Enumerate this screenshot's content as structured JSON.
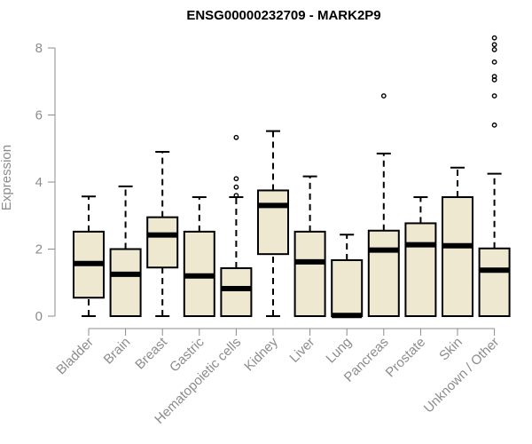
{
  "chart_data": {
    "type": "boxplot",
    "title": "ENSG00000232709 - MARK2P9",
    "ylabel": "Expression",
    "ylim": [
      0,
      8.3
    ],
    "yticks": [
      0,
      2,
      4,
      6,
      8
    ],
    "grid": false,
    "colors": {
      "box_fill": "#efe8d0",
      "stroke": "#000000",
      "axis": "#8c8c8c"
    },
    "categories": [
      "Bladder",
      "Brain",
      "Breast",
      "Gastric",
      "Hematopoietic cells",
      "Kidney",
      "Liver",
      "Lung",
      "Pancreas",
      "Prostate",
      "Skin",
      "Unknown / Other"
    ],
    "boxes": [
      {
        "category": "Bladder",
        "whisker_low": 0,
        "q1": 0.55,
        "median": 1.57,
        "q3": 2.52,
        "whisker_high": 3.57,
        "outliers": []
      },
      {
        "category": "Brain",
        "whisker_low": 0,
        "q1": 0,
        "median": 1.25,
        "q3": 2.0,
        "whisker_high": 3.87,
        "outliers": []
      },
      {
        "category": "Breast",
        "whisker_low": 0,
        "q1": 1.45,
        "median": 2.42,
        "q3": 2.95,
        "whisker_high": 4.9,
        "outliers": []
      },
      {
        "category": "Gastric",
        "whisker_low": 0,
        "q1": 0,
        "median": 1.2,
        "q3": 2.52,
        "whisker_high": 3.55,
        "outliers": []
      },
      {
        "category": "Hematopoietic cells",
        "whisker_low": 0,
        "q1": 0,
        "median": 0.82,
        "q3": 1.43,
        "whisker_high": 3.55,
        "outliers": [
          3.6,
          3.85,
          4.1,
          5.33
        ]
      },
      {
        "category": "Kidney",
        "whisker_low": 0,
        "q1": 1.85,
        "median": 3.3,
        "q3": 3.75,
        "whisker_high": 5.52,
        "outliers": []
      },
      {
        "category": "Liver",
        "whisker_low": 0,
        "q1": 0,
        "median": 1.62,
        "q3": 2.52,
        "whisker_high": 4.17,
        "outliers": []
      },
      {
        "category": "Lung",
        "whisker_low": 0,
        "q1": 0,
        "median": 0.02,
        "q3": 1.67,
        "whisker_high": 2.43,
        "outliers": []
      },
      {
        "category": "Pancreas",
        "whisker_low": 0,
        "q1": 0,
        "median": 1.97,
        "q3": 2.55,
        "whisker_high": 4.85,
        "outliers": [
          6.57
        ]
      },
      {
        "category": "Prostate",
        "whisker_low": 0,
        "q1": 0,
        "median": 2.13,
        "q3": 2.77,
        "whisker_high": 3.55,
        "outliers": []
      },
      {
        "category": "Skin",
        "whisker_low": 0,
        "q1": 0,
        "median": 2.1,
        "q3": 3.55,
        "whisker_high": 4.43,
        "outliers": []
      },
      {
        "category": "Unknown / Other",
        "whisker_low": 0,
        "q1": 0,
        "median": 1.37,
        "q3": 2.02,
        "whisker_high": 4.25,
        "outliers": [
          5.7,
          6.57,
          7.05,
          7.15,
          7.58,
          7.95,
          8.1,
          8.3
        ]
      }
    ]
  }
}
